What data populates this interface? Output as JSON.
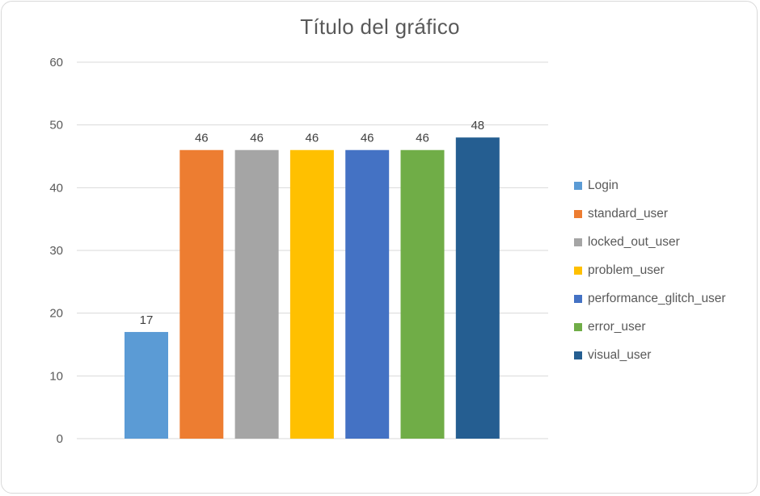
{
  "chart_data": {
    "type": "bar",
    "title": "Título del gráfico",
    "xlabel": "",
    "ylabel": "",
    "ylim": [
      0,
      60
    ],
    "yticks": [
      0,
      10,
      20,
      30,
      40,
      50,
      60
    ],
    "grid": true,
    "legend_position": "right",
    "data_labels": true,
    "series": [
      {
        "name": "Login",
        "value": 17,
        "color": "#5B9BD5"
      },
      {
        "name": "standard_user",
        "value": 46,
        "color": "#ED7D31"
      },
      {
        "name": "locked_out_user",
        "value": 46,
        "color": "#A5A5A5"
      },
      {
        "name": "problem_user",
        "value": 46,
        "color": "#FFC000"
      },
      {
        "name": "performance_glitch_user",
        "value": 46,
        "color": "#4472C4"
      },
      {
        "name": "error_user",
        "value": 46,
        "color": "#70AD47"
      },
      {
        "name": "visual_user",
        "value": 48,
        "color": "#255E91"
      }
    ]
  }
}
